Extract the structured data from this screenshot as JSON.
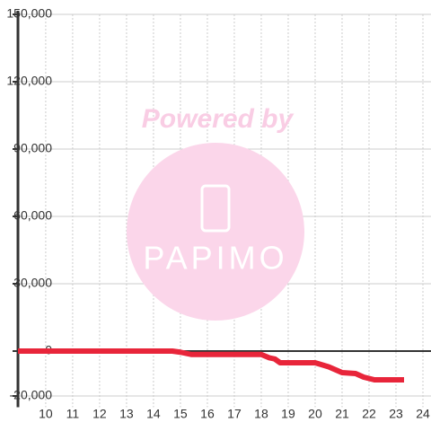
{
  "chart_data": {
    "type": "line",
    "watermark": {
      "title": "Powered by",
      "logo": "PAPIMO"
    },
    "x": [
      8.97,
      14.7,
      15.0,
      15.4,
      18.0,
      18.3,
      18.5,
      18.7,
      20.0,
      20.5,
      21.0,
      21.5,
      21.8,
      22.2,
      23.3
    ],
    "series": [
      {
        "name": "balance",
        "color": "#e8253a",
        "values": [
          0,
          0,
          -500,
          -1500,
          -1500,
          -3000,
          -3500,
          -5200,
          -5200,
          -7000,
          -9600,
          -10000,
          -11600,
          -12800,
          -12800
        ]
      }
    ],
    "xlim": [
      8.97,
      24.3
    ],
    "xticks": [
      10,
      11,
      12,
      13,
      14,
      15,
      16,
      17,
      18,
      19,
      20,
      21,
      22,
      23,
      24
    ],
    "ylim": [
      -25000,
      150000
    ],
    "yticks": [
      {
        "value": -20000,
        "label": "-20,000"
      },
      0,
      {
        "value": 30000,
        "label": "30,000"
      },
      {
        "value": 60000,
        "label": "60,000"
      },
      {
        "value": 90000,
        "label": "90,000"
      },
      {
        "value": 120000,
        "label": "120,000"
      },
      {
        "value": 150000,
        "label": "150,000"
      }
    ],
    "grid": true
  }
}
